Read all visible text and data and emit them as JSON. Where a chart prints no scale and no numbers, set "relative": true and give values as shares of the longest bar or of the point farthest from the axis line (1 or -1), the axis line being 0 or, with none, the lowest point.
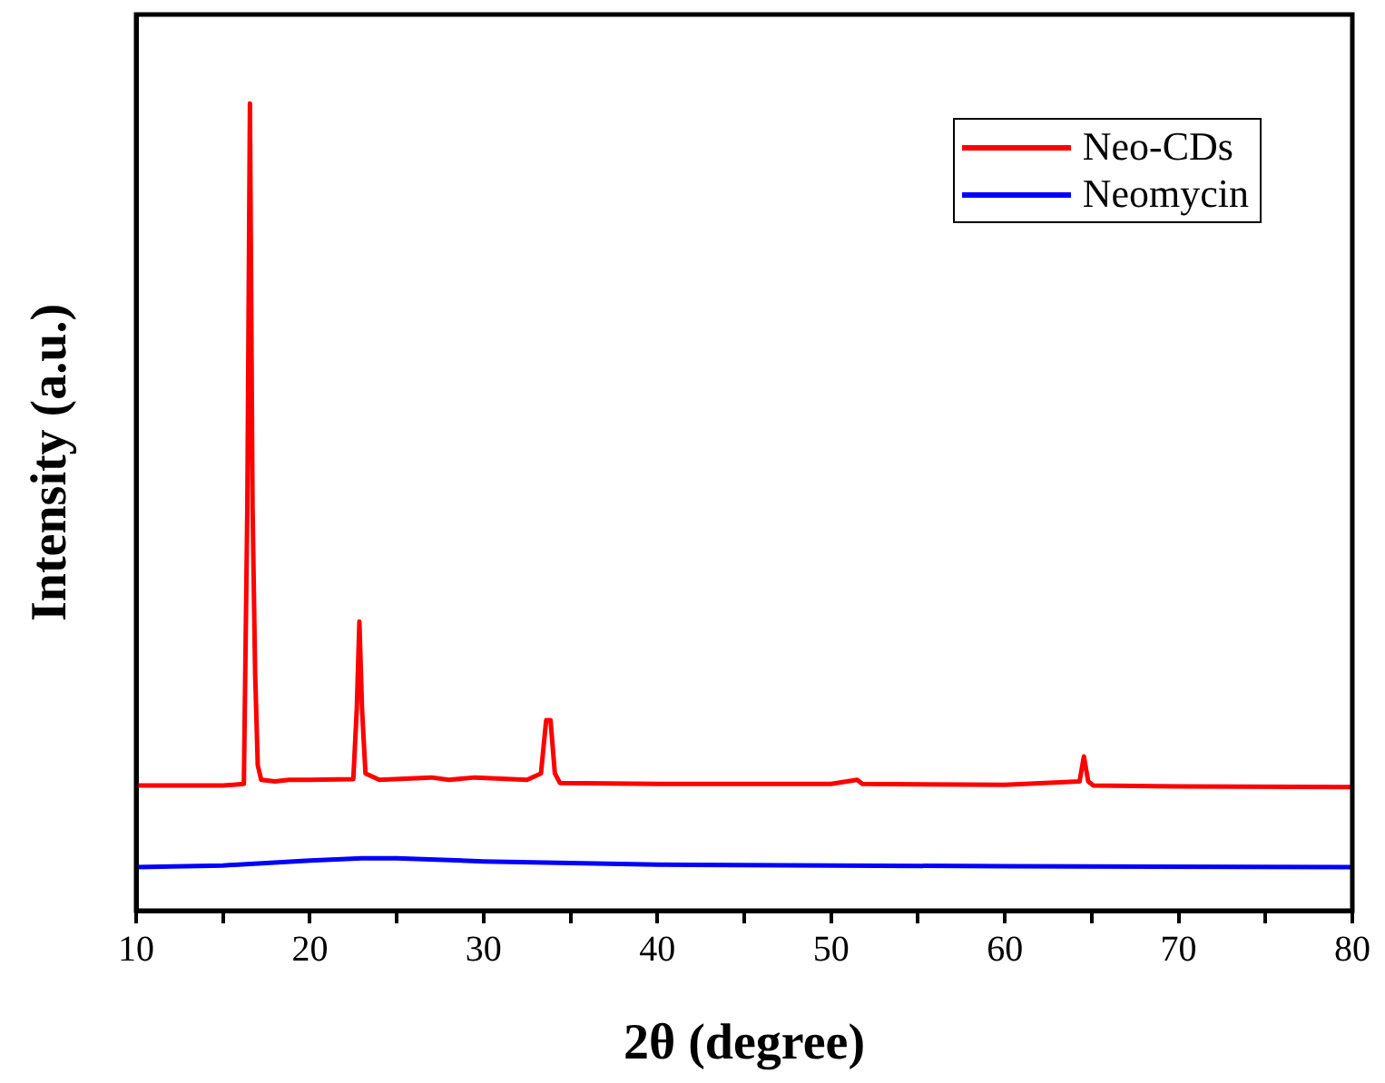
{
  "chart_data": {
    "type": "line",
    "xlabel": "2θ (degree)",
    "ylabel": "Intensity (a.u.)",
    "relative": true,
    "xlim": [
      10,
      80
    ],
    "xticks": [
      10,
      {
        "value": 15,
        "label": null
      },
      20,
      {
        "value": 25,
        "label": null
      },
      30,
      {
        "value": 35,
        "label": null
      },
      40,
      {
        "value": 45,
        "label": null
      },
      50,
      {
        "value": 55,
        "label": null
      },
      60,
      {
        "value": 65,
        "label": null
      },
      70,
      {
        "value": 75,
        "label": null
      },
      80
    ],
    "tick_labels": "x",
    "grid": false,
    "legend": "top right",
    "marker": "none",
    "line_style": "solid",
    "series": [
      {
        "name": "Neo-CDs",
        "color": "#ff0000",
        "x": [
          10,
          15,
          16.2,
          16.4,
          16.55,
          16.7,
          16.85,
          17.0,
          17.2,
          18,
          18.8,
          20,
          22.5,
          22.7,
          22.85,
          23.0,
          23.2,
          24,
          27,
          28,
          29.5,
          32.5,
          33.3,
          33.6,
          33.85,
          34.1,
          34.4,
          40,
          50,
          51.5,
          51.8,
          60,
          64.3,
          64.55,
          64.8,
          65.1,
          70,
          80
        ],
        "values": [
          0.155,
          0.155,
          0.157,
          0.5,
          1,
          0.5,
          0.293,
          0.18,
          0.162,
          0.16,
          0.162,
          0.162,
          0.163,
          0.25,
          0.358,
          0.25,
          0.17,
          0.162,
          0.165,
          0.162,
          0.165,
          0.162,
          0.17,
          0.236,
          0.236,
          0.17,
          0.158,
          0.157,
          0.157,
          0.162,
          0.157,
          0.156,
          0.16,
          0.191,
          0.16,
          0.155,
          0.154,
          0.153
        ]
      },
      {
        "name": "Neomycin",
        "color": "#0000ff",
        "x": [
          10,
          15,
          20,
          23,
          25,
          30,
          40,
          50,
          60,
          80
        ],
        "values": [
          0.054,
          0.056,
          0.062,
          0.065,
          0.065,
          0.061,
          0.057,
          0.056,
          0.055,
          0.054
        ]
      }
    ]
  }
}
